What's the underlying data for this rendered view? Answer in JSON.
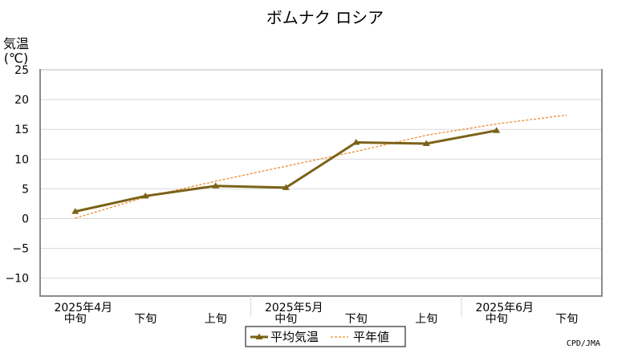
{
  "chart_data": {
    "type": "line",
    "title": "ボムナク ロシア",
    "ylabel": [
      "気温",
      "(℃)"
    ],
    "ylim": [
      -13,
      25
    ],
    "yticks": [
      25,
      20,
      15,
      10,
      5,
      0,
      -5,
      -10
    ],
    "grid": true,
    "categories": [
      "2025年4月中旬",
      "2025年4月下旬",
      "2025年5月上旬",
      "2025年5月中旬",
      "2025年5月下旬",
      "2025年6月上旬",
      "2025年6月中旬",
      "2025年6月下旬"
    ],
    "x_labels": {
      "dekads": [
        "中旬",
        "下旬",
        "上旬",
        "中旬",
        "下旬",
        "上旬",
        "中旬",
        "下旬"
      ],
      "months": [
        {
          "label": "2025年4月",
          "index": 0
        },
        {
          "label": "2025年5月",
          "index": 3
        },
        {
          "label": "2025年6月",
          "index": 6
        }
      ]
    },
    "series": [
      {
        "name": "平均気温",
        "values": [
          1.2,
          3.8,
          5.5,
          5.2,
          12.8,
          12.6,
          14.8,
          null
        ],
        "color": "#7b6218",
        "style": "solid",
        "marker": "triangle"
      },
      {
        "name": "平年値",
        "values": [
          0.1,
          3.6,
          6.3,
          8.8,
          11.3,
          14.0,
          15.9,
          17.4
        ],
        "color": "#f08a2a",
        "style": "dashed"
      }
    ],
    "legend_position": "bottom-center"
  },
  "credit": "CPD/JMA"
}
